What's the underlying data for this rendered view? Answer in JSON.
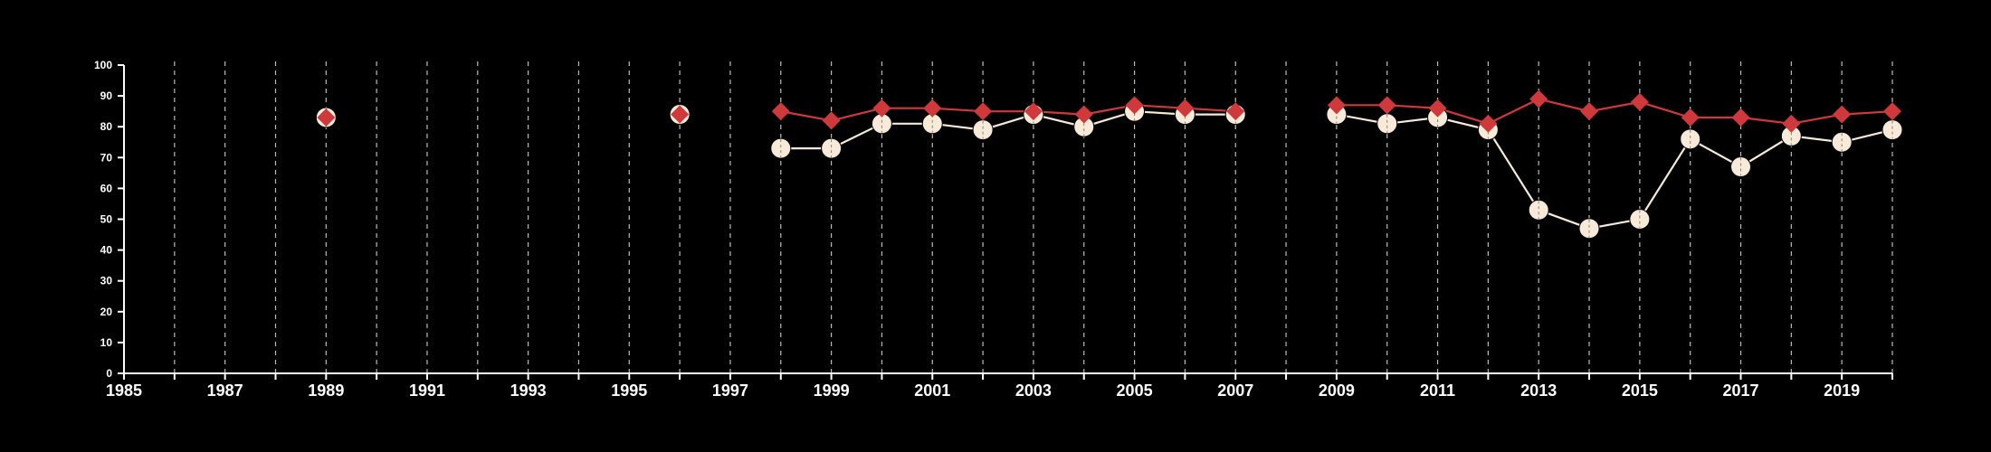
{
  "chart_data": {
    "type": "line",
    "title": "",
    "xlabel": "",
    "ylabel": "",
    "xlim": [
      1985,
      2020
    ],
    "ylim": [
      0,
      100
    ],
    "x_ticks": [
      1985,
      1987,
      1989,
      1991,
      1993,
      1995,
      1997,
      1999,
      2001,
      2003,
      2005,
      2007,
      2009,
      2011,
      2013,
      2015,
      2017,
      2019
    ],
    "y_ticks": [
      0,
      10,
      20,
      30,
      40,
      50,
      60,
      70,
      80,
      90,
      100
    ],
    "grid": "vertical dashed at every year",
    "legend": "none",
    "colors": {
      "background": "#000000",
      "axis": "#ffffff",
      "grid": "#bbbbbb",
      "series_red": "#d0393b",
      "series_white": "#f7ead8"
    },
    "series": [
      {
        "marker": "diamond",
        "color": "#d0393b",
        "points": [
          [
            1989,
            83
          ],
          [
            1996,
            84
          ],
          [
            1998,
            85
          ],
          [
            1999,
            82
          ],
          [
            2000,
            86
          ],
          [
            2001,
            86
          ],
          [
            2002,
            85
          ],
          [
            2003,
            85
          ],
          [
            2004,
            84
          ],
          [
            2005,
            87
          ],
          [
            2006,
            86
          ],
          [
            2007,
            85
          ],
          [
            2009,
            87
          ],
          [
            2010,
            87
          ],
          [
            2011,
            86
          ],
          [
            2012,
            81
          ],
          [
            2013,
            89
          ],
          [
            2014,
            85
          ],
          [
            2015,
            88
          ],
          [
            2016,
            83
          ],
          [
            2017,
            83
          ],
          [
            2018,
            81
          ],
          [
            2019,
            84
          ],
          [
            2020,
            85
          ]
        ]
      },
      {
        "marker": "circle",
        "color": "#f7ead8",
        "points": [
          [
            1989,
            83
          ],
          [
            1996,
            84
          ],
          [
            1998,
            73
          ],
          [
            1999,
            73
          ],
          [
            2000,
            81
          ],
          [
            2001,
            81
          ],
          [
            2002,
            79
          ],
          [
            2003,
            84
          ],
          [
            2004,
            80
          ],
          [
            2005,
            85
          ],
          [
            2006,
            84
          ],
          [
            2007,
            84
          ],
          [
            2009,
            84
          ],
          [
            2010,
            81
          ],
          [
            2011,
            83
          ],
          [
            2012,
            79
          ],
          [
            2013,
            53
          ],
          [
            2014,
            47
          ],
          [
            2015,
            50
          ],
          [
            2016,
            76
          ],
          [
            2017,
            67
          ],
          [
            2018,
            77
          ],
          [
            2019,
            75
          ],
          [
            2020,
            79
          ]
        ]
      }
    ]
  }
}
